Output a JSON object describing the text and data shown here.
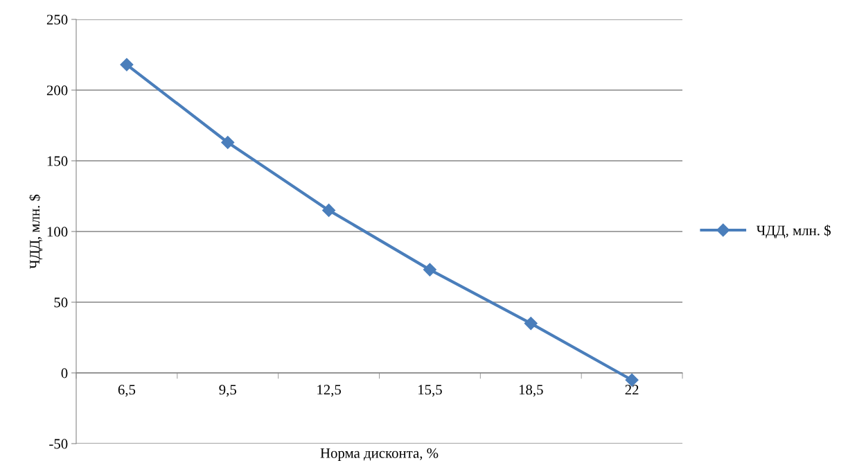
{
  "chart_data": {
    "type": "line",
    "xlabel": "Норма дисконта, %",
    "ylabel": "ЧДД, млн. $",
    "categories": [
      "6,5",
      "9,5",
      "12,5",
      "15,5",
      "18,5",
      "22"
    ],
    "series": [
      {
        "name": "ЧДД, млн. $",
        "color": "#4a7ebb",
        "values": [
          218,
          163,
          115,
          73,
          35,
          -5
        ]
      }
    ],
    "ylim": [
      -50,
      250
    ],
    "yticks": [
      -50,
      0,
      50,
      100,
      150,
      200,
      250
    ],
    "grid": "y",
    "legend": "right",
    "marker": "diamond",
    "line_style": "solid"
  }
}
